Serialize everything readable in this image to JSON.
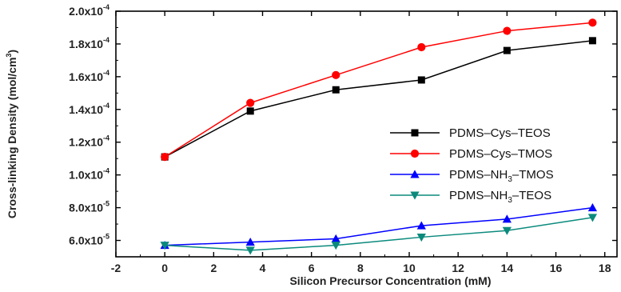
{
  "chart_data": {
    "type": "line",
    "xlabel": "Silicon Precursor Concentration (mM)",
    "ylabel_parts": {
      "base": "Cross-linking Density (mol/cm",
      "sup": "3",
      "end": ")"
    },
    "xlim": [
      -2,
      18.5
    ],
    "ylim": [
      5e-05,
      0.0002
    ],
    "x_ticks": [
      -2,
      0,
      2,
      4,
      6,
      8,
      10,
      12,
      14,
      16,
      18
    ],
    "x_tick_labels": [
      "-2",
      "0",
      "2",
      "4",
      "6",
      "8",
      "10",
      "12",
      "14",
      "16",
      "18"
    ],
    "y_ticks": [
      6e-05,
      8e-05,
      0.0001,
      0.00012,
      0.00014,
      0.00016,
      0.00018,
      0.0002
    ],
    "y_tick_labels": [
      {
        "mant": "6.0x10",
        "exp": "-5"
      },
      {
        "mant": "8.0x10",
        "exp": "-5"
      },
      {
        "mant": "1.0x10",
        "exp": "-4"
      },
      {
        "mant": "1.2x10",
        "exp": "-4"
      },
      {
        "mant": "1.4x10",
        "exp": "-4"
      },
      {
        "mant": "1.6x10",
        "exp": "-4"
      },
      {
        "mant": "1.8x10",
        "exp": "-4"
      },
      {
        "mant": "2.0x10",
        "exp": "-4"
      }
    ],
    "legend_position": "right",
    "x": [
      0,
      3.5,
      7,
      10.5,
      14,
      17.5
    ],
    "series": [
      {
        "name": "PDMS-Cys-TEOS",
        "legend_parts": [
          "PDMS–Cys–TEOS"
        ],
        "marker": "square",
        "color": "#000000",
        "values": [
          0.000111,
          0.000139,
          0.000152,
          0.000158,
          0.000176,
          0.000182
        ]
      },
      {
        "name": "PDMS-Cys-TMOS",
        "legend_parts": [
          "PDMS–Cys–TMOS"
        ],
        "marker": "circle",
        "color": "#ff0000",
        "values": [
          0.000111,
          0.000144,
          0.000161,
          0.000178,
          0.000188,
          0.000193
        ]
      },
      {
        "name": "PDMS-NH3-TMOS",
        "legend_parts": [
          "PDMS–NH",
          "3",
          "–TMOS"
        ],
        "marker": "triangle-up",
        "color": "#0000ff",
        "values": [
          5.7e-05,
          5.9e-05,
          6.1e-05,
          6.9e-05,
          7.3e-05,
          8e-05
        ]
      },
      {
        "name": "PDMS-NH3-TEOS",
        "legend_parts": [
          "PDMS–NH",
          "3",
          "–TEOS"
        ],
        "marker": "triangle-down",
        "color": "#0b8a7c",
        "values": [
          5.7e-05,
          5.4e-05,
          5.7e-05,
          6.2e-05,
          6.6e-05,
          7.4e-05
        ]
      }
    ]
  }
}
